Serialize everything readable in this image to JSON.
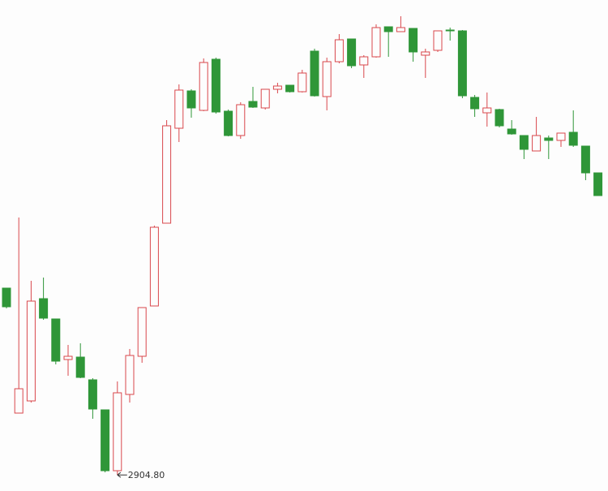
{
  "chart_data": {
    "type": "candlestick",
    "categories": [
      null,
      null,
      null,
      null,
      null,
      null,
      null,
      null,
      null,
      null,
      null,
      null,
      null,
      null,
      null,
      null,
      null,
      null,
      null,
      null,
      null,
      null,
      null,
      null,
      null,
      null,
      null,
      null,
      null,
      null,
      null,
      null,
      null,
      null,
      null,
      null,
      null,
      null,
      null,
      null,
      null,
      null,
      null,
      null,
      null,
      null,
      null,
      null,
      null
    ],
    "open": [
      3135,
      2981,
      2996,
      3122,
      3097,
      3047,
      3050,
      3022,
      2985,
      2910,
      3004,
      3051,
      3113,
      3215,
      3332,
      3378,
      3354,
      3417,
      3353,
      3323,
      3365,
      3357,
      3380,
      3385,
      3377,
      3427,
      3371,
      3414,
      3442,
      3410,
      3420,
      3457,
      3451,
      3455,
      3422,
      3428,
      3453,
      3452,
      3370,
      3351,
      3355,
      3331,
      3323,
      3304,
      3320,
      3317,
      3327,
      3310,
      3277
    ],
    "high": [
      3135,
      3222,
      3144,
      3148,
      3097,
      3065,
      3067,
      3024,
      2985,
      3020,
      3060,
      3111,
      3212,
      3342,
      3386,
      3380,
      3418,
      3419,
      3355,
      3364,
      3383,
      3380,
      3388,
      3385,
      3404,
      3430,
      3419,
      3448,
      3442,
      3422,
      3460,
      3457,
      3470,
      3455,
      3430,
      3452,
      3456,
      3453,
      3373,
      3376,
      3356,
      3342,
      3323,
      3346,
      3323,
      3326,
      3354,
      3310,
      3277
    ],
    "low": [
      3110,
      2981,
      2994,
      3096,
      3041,
      3027,
      3024,
      2974,
      2908,
      2904.8,
      2994,
      3043,
      3113,
      3215,
      3315,
      3345,
      3353,
      3350,
      3322,
      3319,
      3357,
      3355,
      3375,
      3376,
      3376,
      3371,
      3354,
      3412,
      3406,
      3394,
      3419,
      3420,
      3451,
      3414,
      3394,
      3426,
      3440,
      3369,
      3346,
      3334,
      3333,
      3324,
      3294,
      3304,
      3294,
      3309,
      3309,
      3268,
      3249
    ],
    "close": [
      3112,
      3011,
      3119,
      3098,
      3045,
      3051,
      3025,
      2986,
      2910,
      3006,
      3052,
      3111,
      3210,
      3335,
      3379,
      3357,
      3413,
      3352,
      3323,
      3361,
      3358,
      3380,
      3384,
      3377,
      3400,
      3372,
      3414,
      3441,
      3409,
      3420,
      3456,
      3451,
      3456,
      3426,
      3426,
      3452,
      3452,
      3372,
      3356,
      3357,
      3335,
      3325,
      3306,
      3323,
      3317,
      3326,
      3311,
      3277,
      3249
    ],
    "up_color": "#d9474c",
    "down_color": "#2f9638",
    "ylim": [
      2885,
      3490
    ],
    "annotations": [
      {
        "label": "2904.80",
        "value": 2904.8
      }
    ]
  }
}
